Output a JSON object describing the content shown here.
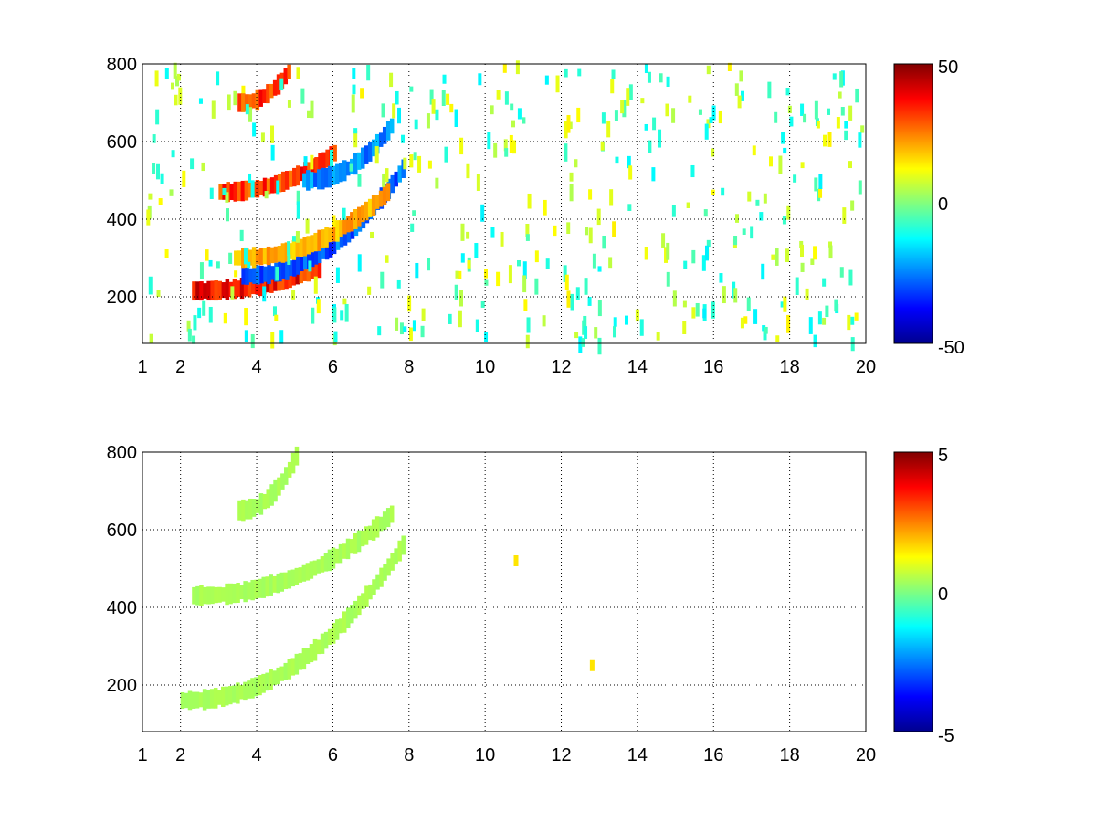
{
  "chart_data": [
    {
      "type": "heatmap",
      "title": "",
      "xlabel": "",
      "ylabel": "",
      "xlim": [
        1,
        20
      ],
      "ylim": [
        80,
        800
      ],
      "xticks": [
        "1",
        "2",
        "4",
        "6",
        "8",
        "10",
        "12",
        "14",
        "16",
        "18",
        "20"
      ],
      "yticks": [
        "200",
        "400",
        "600",
        "800"
      ],
      "grid": true,
      "colormap": "jet",
      "colorbar": {
        "range": [
          -50,
          50
        ],
        "ticks": [
          "50",
          "0",
          "-50"
        ]
      },
      "features": [
        {
          "name": "",
          "x_start": 2.3,
          "x_end": 5.6,
          "y_start": 215,
          "y_end": 275,
          "value": 45
        },
        {
          "name": "",
          "x_start": 3.6,
          "x_end": 7.8,
          "y_start": 255,
          "y_end": 530,
          "value": -35
        },
        {
          "name": "",
          "x_start": 3.4,
          "x_end": 7.4,
          "y_start": 300,
          "y_end": 470,
          "value": 25
        },
        {
          "name": "",
          "x_start": 3.0,
          "x_end": 6.0,
          "y_start": 470,
          "y_end": 570,
          "value": 40
        },
        {
          "name": "",
          "x_start": 5.2,
          "x_end": 7.5,
          "y_start": 500,
          "y_end": 640,
          "value": -30
        },
        {
          "name": "",
          "x_start": 3.5,
          "x_end": 4.8,
          "y_start": 700,
          "y_end": 780,
          "value": 40
        }
      ]
    },
    {
      "type": "heatmap",
      "title": "",
      "xlabel": "",
      "ylabel": "",
      "xlim": [
        1,
        20
      ],
      "ylim": [
        80,
        800
      ],
      "xticks": [
        "1",
        "2",
        "4",
        "6",
        "8",
        "10",
        "12",
        "14",
        "16",
        "18",
        "20"
      ],
      "yticks": [
        "200",
        "400",
        "600",
        "800"
      ],
      "grid": true,
      "colormap": "jet",
      "colorbar": {
        "range": [
          -5,
          5
        ],
        "ticks": [
          "5",
          "0",
          "-5"
        ]
      },
      "features": [
        {
          "name": "",
          "x_start": 2.0,
          "x_end": 7.8,
          "y_start": 160,
          "y_end": 560,
          "value": 0.5
        },
        {
          "name": "",
          "x_start": 2.3,
          "x_end": 7.5,
          "y_start": 430,
          "y_end": 640,
          "value": 0.5
        },
        {
          "name": "",
          "x_start": 3.5,
          "x_end": 5.0,
          "y_start": 650,
          "y_end": 790,
          "value": 0.5
        },
        {
          "name": "",
          "x_start": 10.8,
          "x_end": 10.8,
          "y_start": 520,
          "y_end": 520,
          "value": 1.5
        },
        {
          "name": "",
          "x_start": 12.8,
          "x_end": 12.8,
          "y_start": 250,
          "y_end": 250,
          "value": 1.5
        }
      ]
    }
  ]
}
